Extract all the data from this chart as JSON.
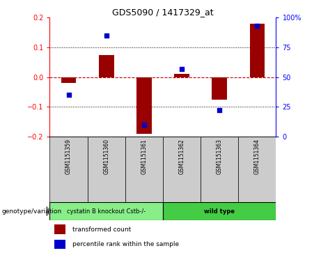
{
  "title": "GDS5090 / 1417329_at",
  "samples": [
    "GSM1151359",
    "GSM1151360",
    "GSM1151361",
    "GSM1151362",
    "GSM1151363",
    "GSM1151364"
  ],
  "transformed_count": [
    -0.02,
    0.075,
    -0.19,
    0.01,
    -0.075,
    0.18
  ],
  "percentile_rank": [
    35,
    85,
    10,
    57,
    22,
    93
  ],
  "ylim_left": [
    -0.2,
    0.2
  ],
  "ylim_right": [
    0,
    100
  ],
  "yticks_left": [
    -0.2,
    -0.1,
    0.0,
    0.1,
    0.2
  ],
  "yticks_right": [
    0,
    25,
    50,
    75,
    100
  ],
  "bar_color": "#990000",
  "dot_color": "#0000cc",
  "hline_color": "#cc0000",
  "groups": [
    {
      "label": "cystatin B knockout Cstb-/-",
      "indices": [
        0,
        1,
        2
      ],
      "color": "#88ee88"
    },
    {
      "label": "wild type",
      "indices": [
        3,
        4,
        5
      ],
      "color": "#44cc44"
    }
  ],
  "genotype_label": "genotype/variation",
  "legend_red": "transformed count",
  "legend_blue": "percentile rank within the sample",
  "background_color": "#ffffff",
  "plot_bg": "#ffffff",
  "sample_bg": "#cccccc",
  "bar_width": 0.4
}
